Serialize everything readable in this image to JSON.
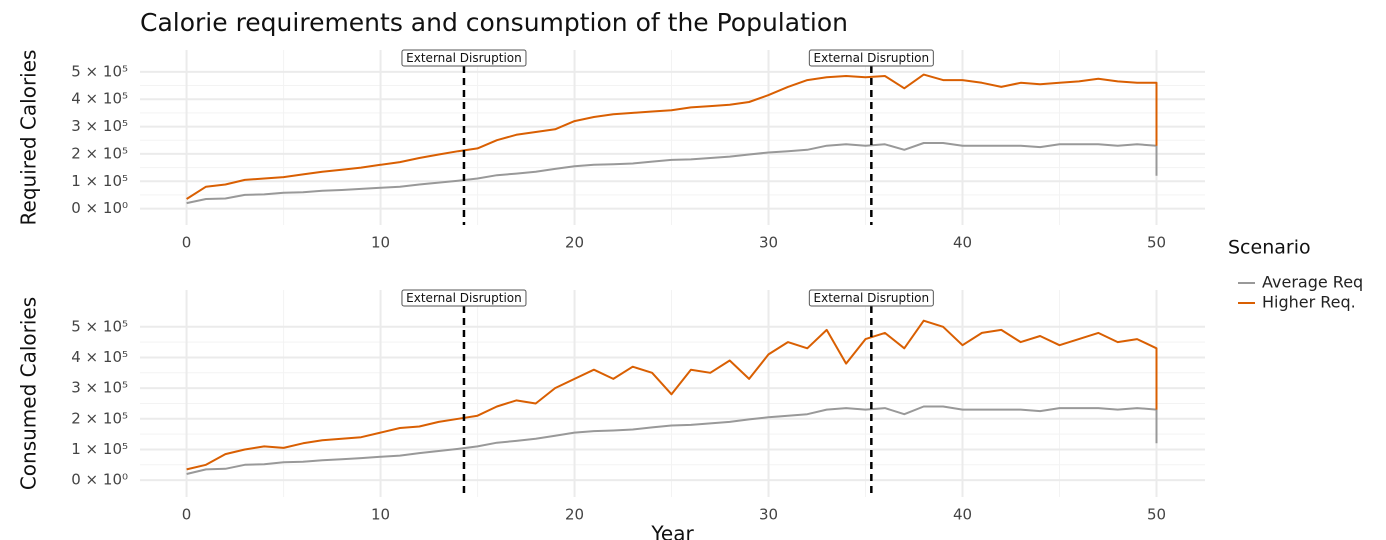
{
  "chart_data": [
    {
      "type": "line",
      "title": "Calorie requirements and consumption of the Population",
      "ylabel": "Required Calories",
      "legend_title": "Scenario",
      "legend": "right",
      "xlim": [
        -2.4,
        52.5
      ],
      "ylim": [
        -60000,
        580000
      ],
      "xticks": [
        0,
        10,
        20,
        30,
        40,
        50
      ],
      "yticks": [
        {
          "value": 0,
          "label": "0 × 10⁰"
        },
        {
          "value": 100000,
          "label": "1 × 10⁵"
        },
        {
          "value": 200000,
          "label": "2 × 10⁵"
        },
        {
          "value": 300000,
          "label": "3 × 10⁵"
        },
        {
          "value": 400000,
          "label": "4 × 10⁵"
        },
        {
          "value": 500000,
          "label": "5 × 10⁵"
        }
      ],
      "grid": true,
      "annotations": [
        {
          "x": 14.3,
          "label": "External Disruption"
        },
        {
          "x": 35.3,
          "label": "External Disruption"
        }
      ],
      "x": [
        0,
        1,
        2,
        3,
        4,
        5,
        6,
        7,
        8,
        9,
        10,
        11,
        12,
        13,
        14,
        15,
        16,
        17,
        18,
        19,
        20,
        21,
        22,
        23,
        24,
        25,
        26,
        27,
        28,
        29,
        30,
        31,
        32,
        33,
        34,
        35,
        36,
        37,
        38,
        39,
        40,
        41,
        42,
        43,
        44,
        45,
        46,
        47,
        48,
        49,
        50,
        50
      ],
      "series": [
        {
          "name": "Average Req",
          "color": "#999999",
          "values": [
            20000,
            35000,
            37000,
            50000,
            52000,
            58000,
            60000,
            65000,
            68000,
            72000,
            76000,
            80000,
            88000,
            95000,
            102000,
            110000,
            122000,
            128000,
            135000,
            145000,
            155000,
            160000,
            162000,
            165000,
            172000,
            178000,
            180000,
            185000,
            190000,
            198000,
            205000,
            210000,
            215000,
            230000,
            235000,
            230000,
            235000,
            215000,
            240000,
            240000,
            230000,
            230000,
            230000,
            230000,
            225000,
            235000,
            235000,
            235000,
            230000,
            235000,
            230000,
            120000
          ]
        },
        {
          "name": "Higher Req.",
          "color": "#d95f02",
          "values": [
            35000,
            80000,
            88000,
            105000,
            110000,
            115000,
            125000,
            135000,
            142000,
            150000,
            160000,
            170000,
            185000,
            198000,
            210000,
            220000,
            250000,
            270000,
            280000,
            290000,
            320000,
            335000,
            345000,
            350000,
            355000,
            360000,
            370000,
            375000,
            380000,
            390000,
            415000,
            445000,
            470000,
            480000,
            485000,
            480000,
            485000,
            440000,
            490000,
            470000,
            470000,
            460000,
            445000,
            460000,
            455000,
            460000,
            465000,
            475000,
            465000,
            460000,
            460000,
            230000
          ]
        }
      ]
    },
    {
      "type": "line",
      "ylabel": "Consumed Calories",
      "xlabel": "Year",
      "xlim": [
        -2.4,
        52.5
      ],
      "ylim": [
        -55000,
        620000
      ],
      "xticks": [
        0,
        10,
        20,
        30,
        40,
        50
      ],
      "yticks": [
        {
          "value": 0,
          "label": "0 × 10⁰"
        },
        {
          "value": 100000,
          "label": "1 × 10⁵"
        },
        {
          "value": 200000,
          "label": "2 × 10⁵"
        },
        {
          "value": 300000,
          "label": "3 × 10⁵"
        },
        {
          "value": 400000,
          "label": "4 × 10⁵"
        },
        {
          "value": 500000,
          "label": "5 × 10⁵"
        }
      ],
      "grid": true,
      "annotations": [
        {
          "x": 14.3,
          "label": "External Disruption"
        },
        {
          "x": 35.3,
          "label": "External Disruption"
        }
      ],
      "x": [
        0,
        1,
        2,
        3,
        4,
        5,
        6,
        7,
        8,
        9,
        10,
        11,
        12,
        13,
        14,
        15,
        16,
        17,
        18,
        19,
        20,
        21,
        22,
        23,
        24,
        25,
        26,
        27,
        28,
        29,
        30,
        31,
        32,
        33,
        34,
        35,
        36,
        37,
        38,
        39,
        40,
        41,
        42,
        43,
        44,
        45,
        46,
        47,
        48,
        49,
        50,
        50
      ],
      "series": [
        {
          "name": "Average Req",
          "color": "#999999",
          "values": [
            20000,
            35000,
            37000,
            50000,
            52000,
            58000,
            60000,
            65000,
            68000,
            72000,
            76000,
            80000,
            88000,
            95000,
            102000,
            110000,
            122000,
            128000,
            135000,
            145000,
            155000,
            160000,
            162000,
            165000,
            172000,
            178000,
            180000,
            185000,
            190000,
            198000,
            205000,
            210000,
            215000,
            230000,
            235000,
            230000,
            235000,
            215000,
            240000,
            240000,
            230000,
            230000,
            230000,
            230000,
            225000,
            235000,
            235000,
            235000,
            230000,
            235000,
            230000,
            120000
          ]
        },
        {
          "name": "Higher Req.",
          "color": "#d95f02",
          "values": [
            35000,
            50000,
            85000,
            100000,
            110000,
            105000,
            120000,
            130000,
            135000,
            140000,
            155000,
            170000,
            175000,
            190000,
            200000,
            210000,
            240000,
            260000,
            250000,
            300000,
            330000,
            360000,
            330000,
            370000,
            350000,
            280000,
            360000,
            350000,
            390000,
            330000,
            410000,
            450000,
            430000,
            490000,
            380000,
            460000,
            480000,
            430000,
            520000,
            500000,
            440000,
            480000,
            490000,
            450000,
            470000,
            440000,
            460000,
            480000,
            450000,
            460000,
            430000,
            230000
          ]
        }
      ]
    }
  ]
}
